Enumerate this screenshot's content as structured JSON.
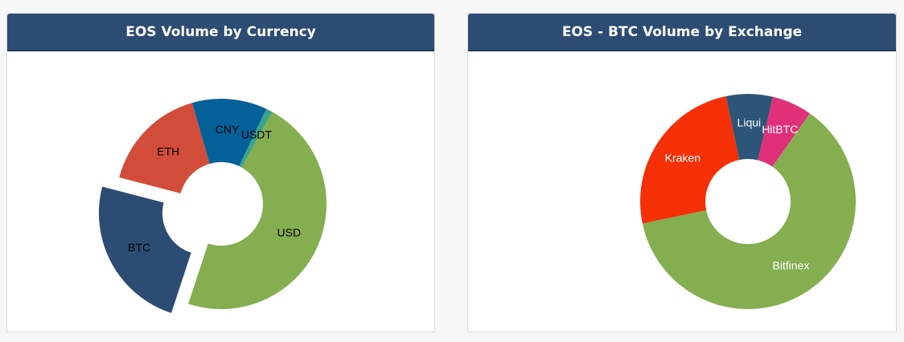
{
  "panels": [
    {
      "title": "EOS Volume by Currency"
    },
    {
      "title": "EOS - BTC Volume by Exchange"
    }
  ],
  "chart_data": [
    {
      "type": "pie",
      "title": "EOS Volume by Currency",
      "categories": [
        "USD",
        "BTC",
        "ETH",
        "CNY",
        "USDT"
      ],
      "values": [
        47.0,
        24.0,
        16.5,
        11.5,
        1.0
      ],
      "colors": [
        "#84ae50",
        "#2d4c73",
        "#d24d39",
        "#046099",
        "#3aa58c"
      ],
      "label_color": "#000000",
      "exploded": [
        "BTC"
      ],
      "start_category_angle_deg": 29,
      "donut": true
    },
    {
      "type": "pie",
      "title": "EOS - BTC Volume by Exchange",
      "categories": [
        "Bitfinex",
        "Kraken",
        "Liqui",
        "HitBTC"
      ],
      "values": [
        62.0,
        25.0,
        7.0,
        6.0
      ],
      "colors": [
        "#84ae50",
        "#f53006",
        "#2d5577",
        "#e03079"
      ],
      "label_color": "#ffffff",
      "exploded": [],
      "start_category_angle_deg": 35,
      "donut": true
    }
  ]
}
